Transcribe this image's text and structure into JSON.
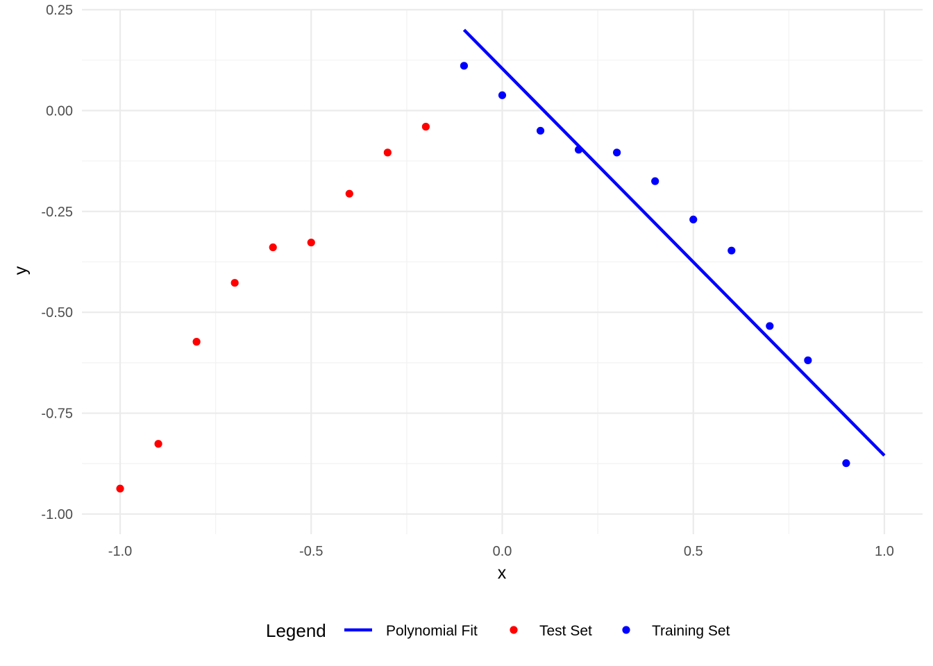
{
  "chart_data": {
    "type": "scatter",
    "title": "",
    "xlabel": "x",
    "ylabel": "y",
    "xlim": [
      -1.1,
      1.1
    ],
    "ylim": [
      -1.05,
      0.25
    ],
    "x_ticks": [
      -1.0,
      -0.5,
      0.0,
      0.5,
      1.0
    ],
    "x_tick_labels": [
      "-1.0",
      "-0.5",
      "0.0",
      "0.5",
      "1.0"
    ],
    "y_ticks": [
      0.25,
      0.0,
      -0.25,
      -0.5,
      -0.75,
      -1.0
    ],
    "y_tick_labels": [
      "0.25",
      "0.00",
      "-0.25",
      "-0.50",
      "-0.75",
      "-1.00"
    ],
    "grid": true,
    "legend_position": "bottom",
    "legend_title": "Legend",
    "series": [
      {
        "name": "Polynomial Fit",
        "kind": "line",
        "color": "#0000ff",
        "x": [
          -0.1,
          1.0
        ],
        "y": [
          0.2,
          -0.855
        ]
      },
      {
        "name": "Test Set",
        "kind": "points",
        "color": "#ff0000",
        "x": [
          -1.0,
          -0.9,
          -0.8,
          -0.7,
          -0.6,
          -0.5,
          -0.4,
          -0.3,
          -0.2
        ],
        "y": [
          -0.937,
          -0.826,
          -0.573,
          -0.427,
          -0.339,
          -0.327,
          -0.206,
          -0.104,
          -0.04
        ]
      },
      {
        "name": "Training Set",
        "kind": "points",
        "color": "#0000ff",
        "x": [
          -0.1,
          0.0,
          0.1,
          0.2,
          0.3,
          0.4,
          0.5,
          0.6,
          0.7,
          0.8,
          0.9
        ],
        "y": [
          0.111,
          0.038,
          -0.05,
          -0.097,
          -0.104,
          -0.175,
          -0.27,
          -0.347,
          -0.534,
          -0.619,
          -0.874
        ]
      }
    ]
  }
}
